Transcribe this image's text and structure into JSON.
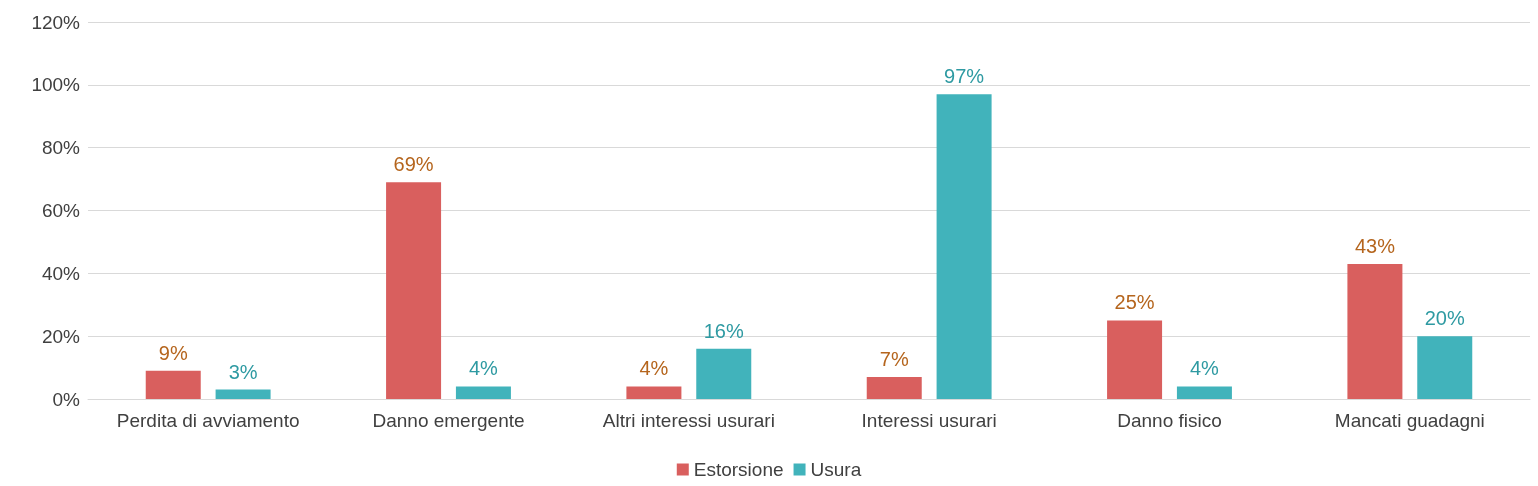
{
  "chart_data": {
    "type": "bar",
    "categories": [
      "Perdita di avviamento",
      "Danno emergente",
      "Altri interessi usurari",
      "Interessi usurari",
      "Danno fisico",
      "Mancati guadagni"
    ],
    "series": [
      {
        "name": "Estorsione",
        "color": "#d95f5e",
        "values": [
          9,
          69,
          4,
          7,
          25,
          43
        ],
        "value_labels": [
          "9%",
          "69%",
          "4%",
          "7%",
          "25%",
          "43%"
        ]
      },
      {
        "name": "Usura",
        "color": "#41b3bb",
        "values": [
          3,
          4,
          16,
          97,
          4,
          20
        ],
        "value_labels": [
          "3%",
          "4%",
          "16%",
          "97%",
          "4%",
          "20%"
        ]
      }
    ],
    "ylim": [
      0,
      120
    ],
    "yticks": [
      {
        "value": 0,
        "label": "0%"
      },
      {
        "value": 20,
        "label": "20%"
      },
      {
        "value": 40,
        "label": "40%"
      },
      {
        "value": 60,
        "label": "60%"
      },
      {
        "value": 80,
        "label": "80%"
      },
      {
        "value": 100,
        "label": "100%"
      },
      {
        "value": 120,
        "label": "120%"
      }
    ],
    "grid": "y",
    "legend": "bottom"
  }
}
